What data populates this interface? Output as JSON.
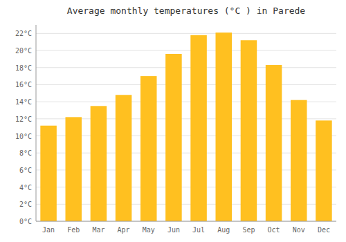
{
  "chart_data": {
    "type": "bar",
    "title": "Average monthly temperatures (°C ) in Parede",
    "categories": [
      "Jan",
      "Feb",
      "Mar",
      "Apr",
      "May",
      "Jun",
      "Jul",
      "Aug",
      "Sep",
      "Oct",
      "Nov",
      "Dec"
    ],
    "values": [
      11.2,
      12.2,
      13.5,
      14.8,
      17.0,
      19.6,
      21.8,
      22.1,
      21.2,
      18.3,
      14.2,
      11.8
    ],
    "color": "#FFC020",
    "ylim": [
      0,
      23
    ],
    "yticks": [
      {
        "value": 0,
        "label": "0°C"
      },
      {
        "value": 2,
        "label": "2°C"
      },
      {
        "value": 4,
        "label": "4°C"
      },
      {
        "value": 6,
        "label": "6°C"
      },
      {
        "value": 8,
        "label": "8°C"
      },
      {
        "value": 10,
        "label": "10°C"
      },
      {
        "value": 12,
        "label": "12°C"
      },
      {
        "value": 14,
        "label": "14°C"
      },
      {
        "value": 16,
        "label": "16°C"
      },
      {
        "value": 18,
        "label": "18°C"
      },
      {
        "value": 20,
        "label": "20°C"
      },
      {
        "value": 22,
        "label": "22°C"
      }
    ],
    "grid": true
  }
}
